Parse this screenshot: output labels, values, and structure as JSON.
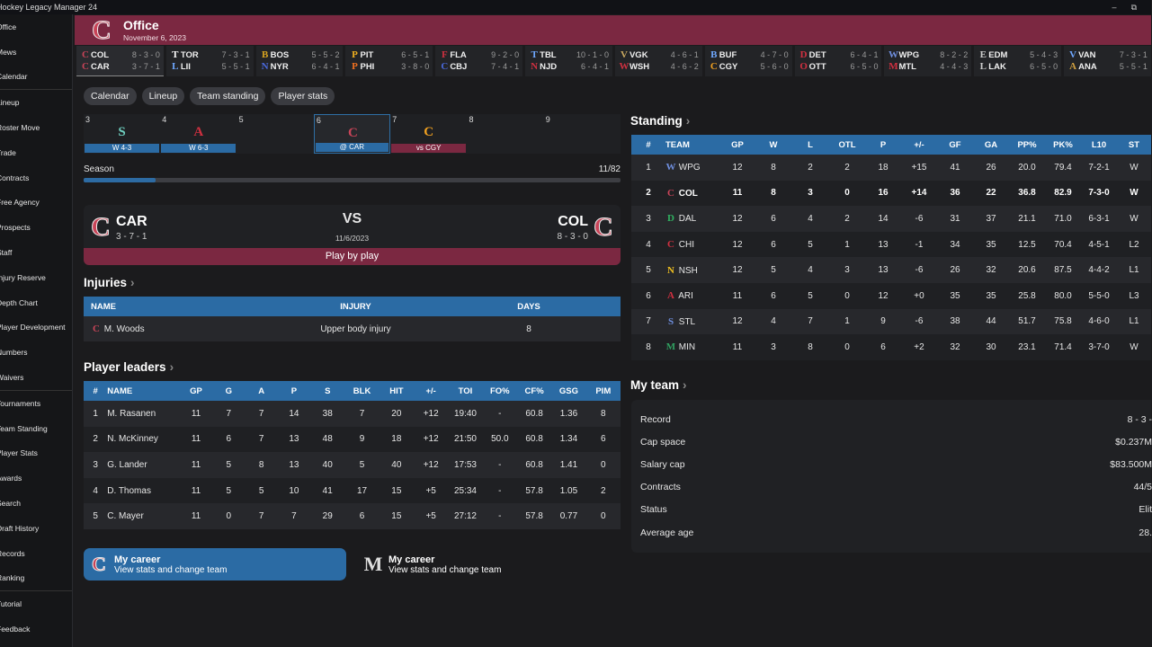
{
  "window": {
    "title": "Hockey Legacy Manager 24",
    "min": "–",
    "max": "⧉"
  },
  "sidebar": [
    [
      "Office",
      "Mews",
      "Calendar"
    ],
    [
      "Lineup",
      "Roster Move",
      "Trade",
      "Contracts",
      "Free Agency",
      "Prospects",
      "Staff",
      "Injury Reserve",
      "Depth Chart",
      "Player Development",
      "Numbers",
      "Waivers"
    ],
    [
      "Tournaments",
      "Team Standing",
      "Player Stats",
      "Awards",
      "Search",
      "Draft History",
      "Records",
      "Ranking"
    ],
    [
      "Tutorial",
      "Feedback"
    ]
  ],
  "header": {
    "title": "Office",
    "date": "November 6, 2023",
    "logo": "C"
  },
  "scores": [
    {
      "a": "COL",
      "ar": "8 - 3 - 0",
      "b": "CAR",
      "br": "3 - 7 - 1",
      "ac": "#c84458",
      "bc": "#c84458",
      "al": "C",
      "bl": "C",
      "active": true
    },
    {
      "a": "TOR",
      "ar": "7 - 3 - 1",
      "b": "LII",
      "br": "5 - 5 - 1",
      "ac": "#ffffff",
      "bc": "#6fa8ff",
      "al": "T",
      "bl": "L"
    },
    {
      "a": "BOS",
      "ar": "5 - 5 - 2",
      "b": "NYR",
      "br": "6 - 4 - 1",
      "ac": "#d8a420",
      "bc": "#4a6adf",
      "al": "B",
      "bl": "N"
    },
    {
      "a": "PIT",
      "ar": "6 - 5 - 1",
      "b": "PHI",
      "br": "3 - 8 - 0",
      "ac": "#f0b020",
      "bc": "#f07020",
      "al": "P",
      "bl": "P"
    },
    {
      "a": "FLA",
      "ar": "9 - 2 - 0",
      "b": "CBJ",
      "br": "7 - 4 - 1",
      "ac": "#d03040",
      "bc": "#4a6adf",
      "al": "F",
      "bl": "C"
    },
    {
      "a": "TBL",
      "ar": "10 - 1 - 0",
      "b": "NJD",
      "br": "6 - 4 - 1",
      "ac": "#6fa8ff",
      "bc": "#d03040",
      "al": "T",
      "bl": "N"
    },
    {
      "a": "VGK",
      "ar": "4 - 6 - 1",
      "b": "WSH",
      "br": "4 - 6 - 2",
      "ac": "#c8a860",
      "bc": "#d03040",
      "al": "V",
      "bl": "W"
    },
    {
      "a": "BUF",
      "ar": "4 - 7 - 0",
      "b": "CGY",
      "br": "5 - 6 - 0",
      "ac": "#6fa8ff",
      "bc": "#f0a020",
      "al": "B",
      "bl": "C"
    },
    {
      "a": "DET",
      "ar": "6 - 4 - 1",
      "b": "OTT",
      "br": "6 - 5 - 0",
      "ac": "#d03040",
      "bc": "#d03040",
      "al": "D",
      "bl": "O"
    },
    {
      "a": "WPG",
      "ar": "8 - 2 - 2",
      "b": "MTL",
      "br": "4 - 4 - 3",
      "ac": "#6f8fdf",
      "bc": "#d03040",
      "al": "W",
      "bl": "M"
    },
    {
      "a": "EDM",
      "ar": "5 - 4 - 3",
      "b": "LAK",
      "br": "6 - 5 - 0",
      "ac": "#cccccc",
      "bc": "#cccccc",
      "al": "E",
      "bl": "L"
    },
    {
      "a": "VAN",
      "ar": "7 - 3 - 1",
      "b": "ANA",
      "br": "5 - 5 - 1",
      "ac": "#6fa8ff",
      "bc": "#d0a040",
      "al": "V",
      "bl": "A"
    }
  ],
  "tabs": [
    "Calendar",
    "Lineup",
    "Team standing",
    "Player stats"
  ],
  "schedule": [
    {
      "num": "3",
      "icon": "S",
      "color": "#6fd0c0",
      "bar": "W 4-3",
      "barColor": "#2b6ba4"
    },
    {
      "num": "4",
      "icon": "A",
      "color": "#d03040",
      "bar": "W 6-3",
      "barColor": "#2b6ba4"
    },
    {
      "num": "5",
      "icon": "",
      "color": "",
      "bar": "",
      "barColor": ""
    },
    {
      "num": "6",
      "icon": "C",
      "color": "#c84458",
      "bar": "@ CAR",
      "barColor": "#2b6ba4",
      "sel": true
    },
    {
      "num": "7",
      "icon": "C",
      "color": "#f0a020",
      "bar": "vs CGY",
      "barColor": "#7b2841"
    },
    {
      "num": "8",
      "icon": "",
      "color": "",
      "bar": "",
      "barColor": ""
    },
    {
      "num": "9",
      "icon": "",
      "color": "",
      "bar": "",
      "barColor": ""
    }
  ],
  "season": {
    "label": "Season",
    "value": "11/82",
    "progress": 0.134
  },
  "match": {
    "home": "CAR",
    "homeRec": "3 - 7 - 1",
    "away": "COL",
    "awayRec": "8 - 3 - 0",
    "vs": "VS",
    "date": "11/6/2023",
    "button": "Play by play"
  },
  "injuries": {
    "title": "Injuries",
    "chev": "›",
    "headers": [
      "NAME",
      "INJURY",
      "DAYS"
    ],
    "rows": [
      {
        "logo": "C",
        "name": "M. Woods",
        "injury": "Upper body injury",
        "days": "8"
      }
    ]
  },
  "leaders": {
    "title": "Player leaders",
    "chev": "›",
    "headers": [
      "#",
      "NAME",
      "GP",
      "G",
      "A",
      "P",
      "S",
      "BLK",
      "HIT",
      "+/-",
      "TOI",
      "FO%",
      "CF%",
      "GSG",
      "PIM"
    ],
    "rows": [
      [
        "1",
        "M. Rasanen",
        "11",
        "7",
        "7",
        "14",
        "38",
        "7",
        "20",
        "+12",
        "19:40",
        "-",
        "60.8",
        "1.36",
        "8"
      ],
      [
        "2",
        "N. McKinney",
        "11",
        "6",
        "7",
        "13",
        "48",
        "9",
        "18",
        "+12",
        "21:50",
        "50.0",
        "60.8",
        "1.34",
        "6"
      ],
      [
        "3",
        "G. Lander",
        "11",
        "5",
        "8",
        "13",
        "40",
        "5",
        "40",
        "+12",
        "17:53",
        "-",
        "60.8",
        "1.41",
        "0"
      ],
      [
        "4",
        "D. Thomas",
        "11",
        "5",
        "5",
        "10",
        "41",
        "17",
        "15",
        "+5",
        "25:34",
        "-",
        "57.8",
        "1.05",
        "2"
      ],
      [
        "5",
        "C. Mayer",
        "11",
        "0",
        "7",
        "7",
        "29",
        "6",
        "15",
        "+5",
        "27:12",
        "-",
        "57.8",
        "0.77",
        "0"
      ]
    ]
  },
  "standing": {
    "title": "Standing",
    "chev": "›",
    "headers": [
      "#",
      "TEAM",
      "GP",
      "W",
      "L",
      "OTL",
      "P",
      "+/-",
      "GF",
      "GA",
      "PP%",
      "PK%",
      "L10",
      "ST"
    ],
    "rows": [
      {
        "c": [
          "1",
          "WPG",
          "12",
          "8",
          "2",
          "2",
          "18",
          "+15",
          "41",
          "26",
          "20.0",
          "79.4",
          "7-2-1",
          "W"
        ],
        "logo": "W",
        "lc": "#6f8fdf"
      },
      {
        "c": [
          "2",
          "COL",
          "11",
          "8",
          "3",
          "0",
          "16",
          "+14",
          "36",
          "22",
          "36.8",
          "82.9",
          "7-3-0",
          "W"
        ],
        "logo": "C",
        "lc": "#c84458",
        "bold": true
      },
      {
        "c": [
          "3",
          "DAL",
          "12",
          "6",
          "4",
          "2",
          "14",
          "-6",
          "31",
          "37",
          "21.1",
          "71.0",
          "6-3-1",
          "W"
        ],
        "logo": "D",
        "lc": "#30b060"
      },
      {
        "c": [
          "4",
          "CHI",
          "12",
          "6",
          "5",
          "1",
          "13",
          "-1",
          "34",
          "35",
          "12.5",
          "70.4",
          "4-5-1",
          "L2"
        ],
        "logo": "C",
        "lc": "#d03040"
      },
      {
        "c": [
          "5",
          "NSH",
          "12",
          "5",
          "4",
          "3",
          "13",
          "-6",
          "26",
          "32",
          "20.6",
          "87.5",
          "4-4-2",
          "L1"
        ],
        "logo": "N",
        "lc": "#f0c020"
      },
      {
        "c": [
          "6",
          "ARI",
          "11",
          "6",
          "5",
          "0",
          "12",
          "+0",
          "35",
          "35",
          "25.8",
          "80.0",
          "5-5-0",
          "L3"
        ],
        "logo": "A",
        "lc": "#d03040"
      },
      {
        "c": [
          "7",
          "STL",
          "12",
          "4",
          "7",
          "1",
          "9",
          "-6",
          "38",
          "44",
          "51.7",
          "75.8",
          "4-6-0",
          "L1"
        ],
        "logo": "S",
        "lc": "#6f8fdf"
      },
      {
        "c": [
          "8",
          "MIN",
          "11",
          "3",
          "8",
          "0",
          "6",
          "+2",
          "32",
          "30",
          "23.1",
          "71.4",
          "3-7-0",
          "W"
        ],
        "logo": "M",
        "lc": "#30a060"
      }
    ]
  },
  "myteam": {
    "title": "My team",
    "chev": "›",
    "rows": [
      [
        "Record",
        "8 - 3 -"
      ],
      [
        "Cap space",
        "$0.237M"
      ],
      [
        "Salary cap",
        "$83.500M"
      ],
      [
        "Contracts",
        "44/5"
      ],
      [
        "Status",
        "Elit"
      ],
      [
        "Average age",
        "28."
      ]
    ]
  },
  "career": [
    {
      "logo": "C",
      "title": "My career",
      "sub": "View stats and change team"
    },
    {
      "logo": "M",
      "title": "My career",
      "sub": "View stats and change team"
    }
  ]
}
